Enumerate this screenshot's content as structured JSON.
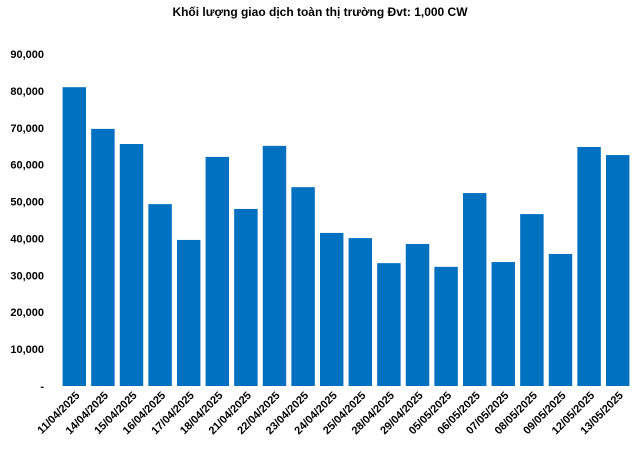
{
  "chart_data": {
    "type": "bar",
    "title": "Khối lượng giao dịch toàn thị trường Đvt: 1,000 CW",
    "categories": [
      "11/04/2025",
      "14/04/2025",
      "15/04/2025",
      "16/04/2025",
      "17/04/2025",
      "18/04/2025",
      "21/04/2025",
      "22/04/2025",
      "23/04/2025",
      "24/04/2025",
      "25/04/2025",
      "28/04/2025",
      "29/04/2025",
      "05/05/2025",
      "06/05/2025",
      "07/05/2025",
      "08/05/2025",
      "09/05/2025",
      "12/05/2025",
      "13/05/2025"
    ],
    "values": [
      81000,
      69700,
      65600,
      49300,
      39600,
      62100,
      48000,
      65100,
      53900,
      41500,
      40100,
      33300,
      38500,
      32300,
      52300,
      33600,
      46600,
      35800,
      64800,
      62600
    ],
    "color": "#0070c0",
    "ylim": [
      0,
      90000
    ],
    "yticks": [
      {
        "value": 0,
        "label": "-"
      },
      {
        "value": 10000,
        "label": "10,000"
      },
      {
        "value": 20000,
        "label": "20,000"
      },
      {
        "value": 30000,
        "label": "30,000"
      },
      {
        "value": 40000,
        "label": "40,000"
      },
      {
        "value": 50000,
        "label": "50,000"
      },
      {
        "value": 60000,
        "label": "60,000"
      },
      {
        "value": 70000,
        "label": "70,000"
      },
      {
        "value": 80000,
        "label": "80,000"
      },
      {
        "value": 90000,
        "label": "90,000"
      }
    ],
    "grid": false
  }
}
